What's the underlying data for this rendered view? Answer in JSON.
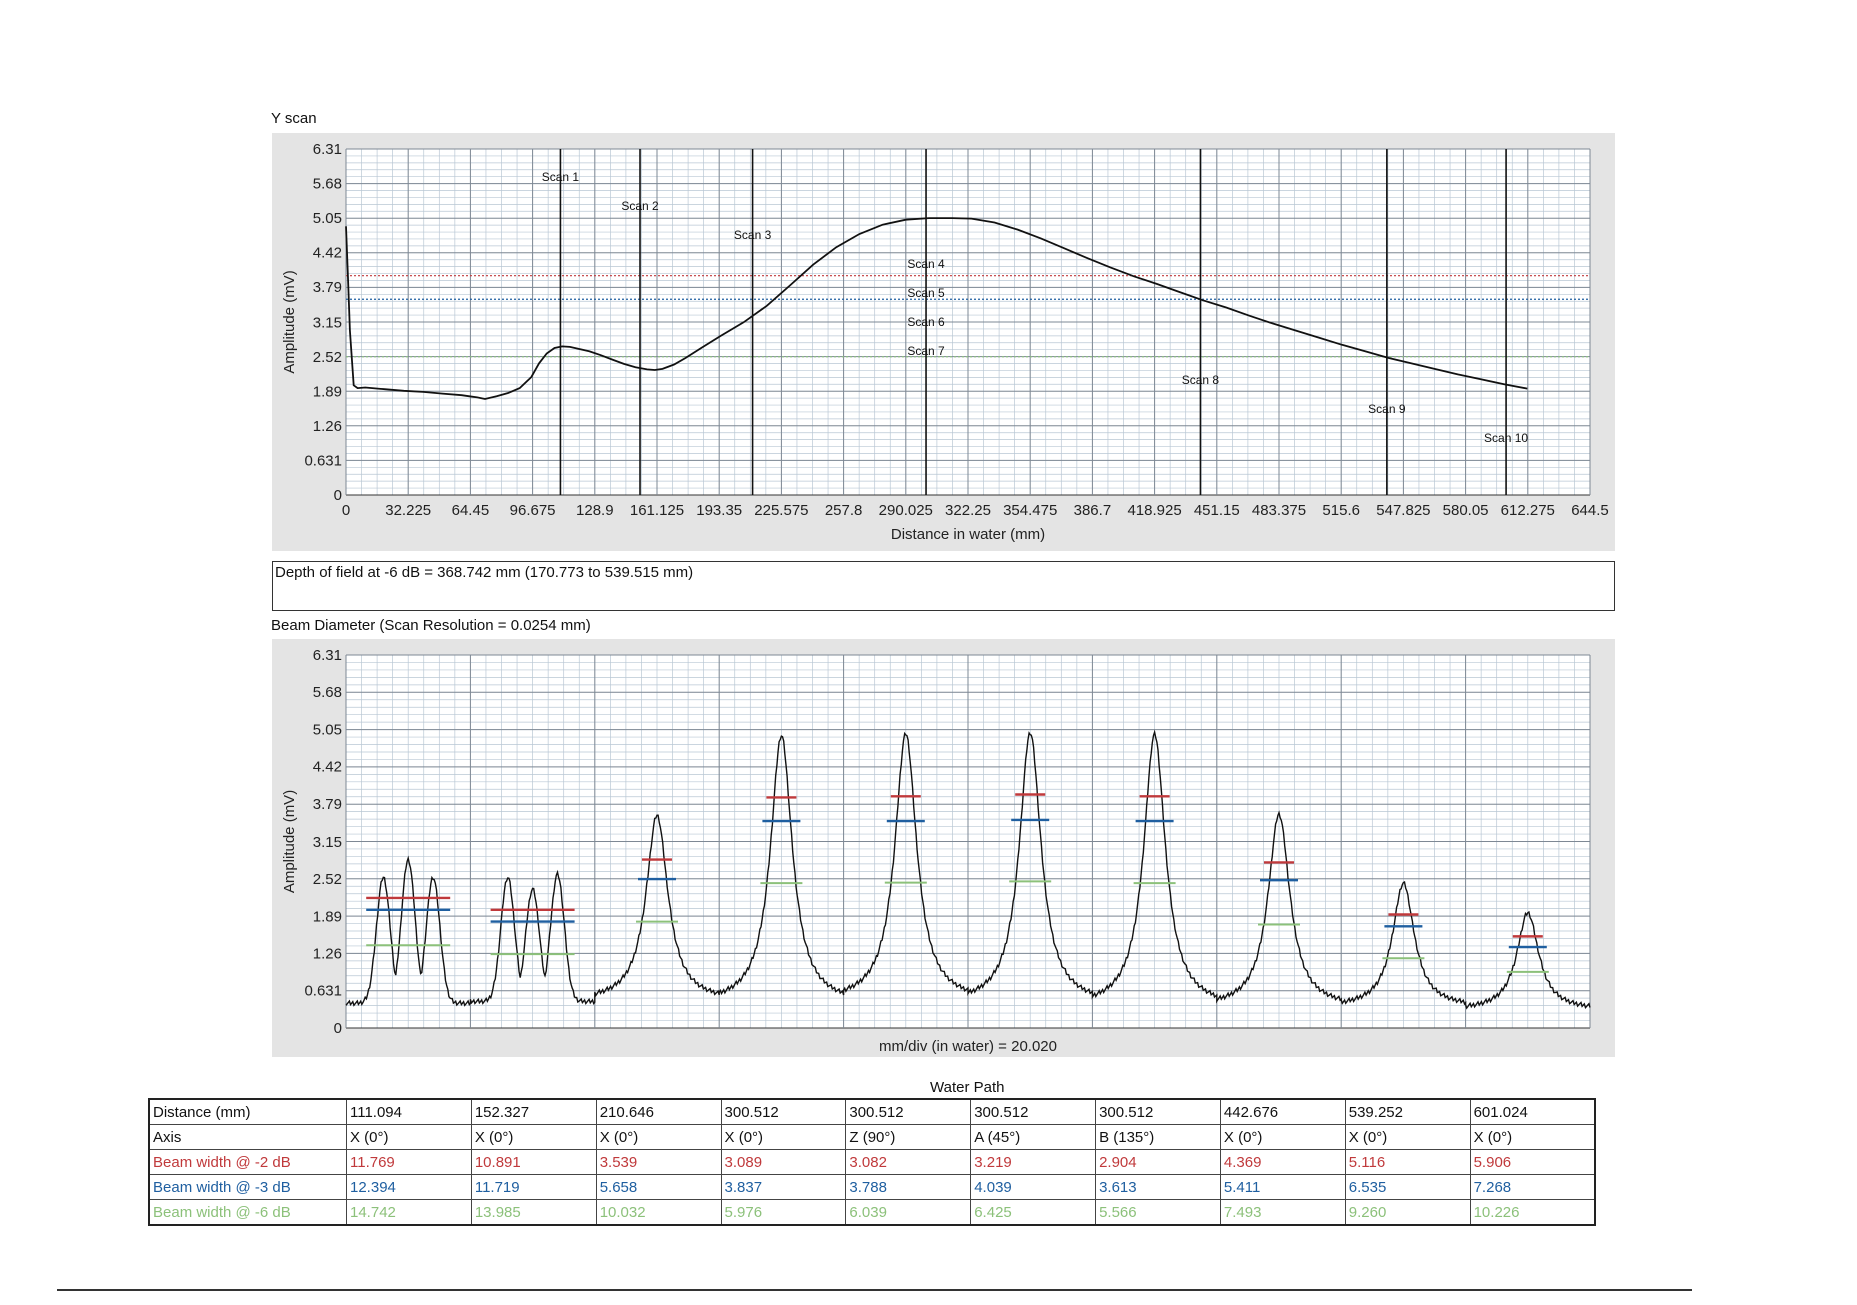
{
  "colors": {
    "minus2db": "#c0393b",
    "minus3db": "#1f5fa0",
    "minus6db": "#8cc17a",
    "scan_line": "#111111",
    "panel_bg": "#e4e4e4"
  },
  "chart_data": [
    {
      "type": "line",
      "title": "Y scan",
      "xlabel": "Distance in water (mm)",
      "ylabel": "Amplitude (mV)",
      "xlim": [
        0,
        644.5
      ],
      "ylim": [
        0,
        6.31
      ],
      "x_ticks": [
        "0",
        "32.225",
        "64.45",
        "96.675",
        "128.9",
        "161.125",
        "193.35",
        "225.575",
        "257.8",
        "290.025",
        "322.25",
        "354.475",
        "386.7",
        "418.925",
        "451.15",
        "483.375",
        "515.6",
        "547.825",
        "580.05",
        "612.275",
        "644.5"
      ],
      "y_ticks": [
        "0",
        "0.631",
        "1.26",
        "1.89",
        "2.52",
        "3.15",
        "3.79",
        "4.42",
        "5.05",
        "5.68",
        "6.31"
      ],
      "grid": true,
      "series": [
        {
          "x": [
            0,
            1,
            2,
            4,
            6,
            10,
            20,
            30,
            40,
            50,
            60,
            64,
            68,
            72,
            78,
            84,
            90,
            96,
            100,
            104,
            108,
            112,
            116,
            120,
            126,
            132,
            138,
            144,
            150,
            156,
            160,
            164,
            170,
            176,
            184,
            194,
            206,
            218,
            230,
            242,
            254,
            266,
            278,
            290,
            302,
            314,
            324,
            336,
            348,
            360,
            372,
            384,
            396,
            408,
            420,
            432,
            444,
            456,
            468,
            480,
            492,
            504,
            516,
            528,
            540,
            552,
            564,
            576,
            588,
            600,
            612
          ],
          "y": [
            4.9,
            4.0,
            3.0,
            2.0,
            1.95,
            1.96,
            1.93,
            1.9,
            1.88,
            1.85,
            1.82,
            1.8,
            1.78,
            1.75,
            1.8,
            1.86,
            1.95,
            2.15,
            2.4,
            2.58,
            2.68,
            2.71,
            2.7,
            2.67,
            2.62,
            2.55,
            2.47,
            2.39,
            2.33,
            2.29,
            2.28,
            2.3,
            2.38,
            2.5,
            2.68,
            2.9,
            3.15,
            3.45,
            3.82,
            4.2,
            4.52,
            4.76,
            4.93,
            5.02,
            5.05,
            5.05,
            5.04,
            4.97,
            4.84,
            4.68,
            4.5,
            4.32,
            4.15,
            3.99,
            3.85,
            3.7,
            3.55,
            3.42,
            3.27,
            3.13,
            3.0,
            2.87,
            2.74,
            2.62,
            2.5,
            2.4,
            2.3,
            2.2,
            2.11,
            2.02,
            1.94
          ]
        }
      ],
      "reference_lines": [
        {
          "y": 4.0,
          "color": "#c0393b"
        },
        {
          "y": 3.57,
          "color": "#1f5fa0"
        },
        {
          "y": 2.52,
          "color": "#8cc17a"
        }
      ],
      "scan_markers": [
        {
          "x": 111.094,
          "label": "Scan 1"
        },
        {
          "x": 152.327,
          "label": "Scan 2"
        },
        {
          "x": 210.646,
          "label": "Scan 3"
        },
        {
          "x": 300.512,
          "label": "Scan 4"
        },
        {
          "x": 300.512,
          "label": "Scan 5"
        },
        {
          "x": 300.512,
          "label": "Scan 6"
        },
        {
          "x": 300.512,
          "label": "Scan 7"
        },
        {
          "x": 442.676,
          "label": "Scan 8"
        },
        {
          "x": 539.252,
          "label": "Scan 9"
        },
        {
          "x": 601.024,
          "label": "Scan 10"
        }
      ]
    },
    {
      "type": "line",
      "title": "Beam Diameter (Scan Resolution = 0.0254 mm)",
      "xlabel": "mm/div (in water) = 20.020",
      "ylabel": "Amplitude (mV)",
      "ylim": [
        0,
        6.31
      ],
      "y_ticks": [
        "0",
        "0.631",
        "1.26",
        "1.89",
        "2.52",
        "3.15",
        "3.79",
        "4.42",
        "5.05",
        "5.68",
        "6.31"
      ],
      "grid": true,
      "scans": [
        {
          "peaks": [
            2.55,
            2.85,
            2.55
          ],
          "l2": 2.2,
          "l3": 2.0,
          "l6": 1.4,
          "min": 0.42
        },
        {
          "peaks": [
            2.55,
            2.35,
            2.6
          ],
          "l2": 2.0,
          "l3": 1.8,
          "l6": 1.25,
          "min": 0.45
        },
        {
          "peaks": [
            3.6
          ],
          "l2": 2.85,
          "l3": 2.52,
          "l6": 1.8,
          "min": 0.45
        },
        {
          "peaks": [
            4.95
          ],
          "l2": 3.9,
          "l3": 3.5,
          "l6": 2.45,
          "min": 0.4
        },
        {
          "peaks": [
            4.98
          ],
          "l2": 3.92,
          "l3": 3.5,
          "l6": 2.46,
          "min": 0.45
        },
        {
          "peaks": [
            5.0
          ],
          "l2": 3.95,
          "l3": 3.52,
          "l6": 2.48,
          "min": 0.4
        },
        {
          "peaks": [
            4.97
          ],
          "l2": 3.92,
          "l3": 3.5,
          "l6": 2.45,
          "min": 0.35
        },
        {
          "peaks": [
            3.62
          ],
          "l2": 2.8,
          "l3": 2.5,
          "l6": 1.75,
          "min": 0.35
        },
        {
          "peaks": [
            2.45
          ],
          "l2": 1.92,
          "l3": 1.72,
          "l6": 1.18,
          "min": 0.35
        },
        {
          "peaks": [
            1.95
          ],
          "l2": 1.55,
          "l3": 1.37,
          "l6": 0.95,
          "min": 0.3
        }
      ]
    }
  ],
  "depth_of_field_text": "Depth of field at -6 dB = 368.742 mm (170.773 to 539.515 mm)",
  "table": {
    "title": "Water Path",
    "rows": [
      {
        "label": "Distance (mm)",
        "values": [
          "111.094",
          "152.327",
          "210.646",
          "300.512",
          "300.512",
          "300.512",
          "300.512",
          "442.676",
          "539.252",
          "601.024"
        ]
      },
      {
        "label": "Axis",
        "values": [
          "X (0°)",
          "X (0°)",
          "X (0°)",
          "X (0°)",
          "Z (90°)",
          "A (45°)",
          "B (135°)",
          "X (0°)",
          "X (0°)",
          "X (0°)"
        ]
      },
      {
        "label": "Beam width @ -2 dB",
        "values": [
          "11.769",
          "10.891",
          "3.539",
          "3.089",
          "3.082",
          "3.219",
          "2.904",
          "4.369",
          "5.116",
          "5.906"
        ]
      },
      {
        "label": "Beam width @ -3 dB",
        "values": [
          "12.394",
          "11.719",
          "5.658",
          "3.837",
          "3.788",
          "4.039",
          "3.613",
          "5.411",
          "6.535",
          "7.268"
        ]
      },
      {
        "label": "Beam width @ -6 dB",
        "values": [
          "14.742",
          "13.985",
          "10.032",
          "5.976",
          "6.039",
          "6.425",
          "5.566",
          "7.493",
          "9.260",
          "10.226"
        ]
      }
    ]
  }
}
